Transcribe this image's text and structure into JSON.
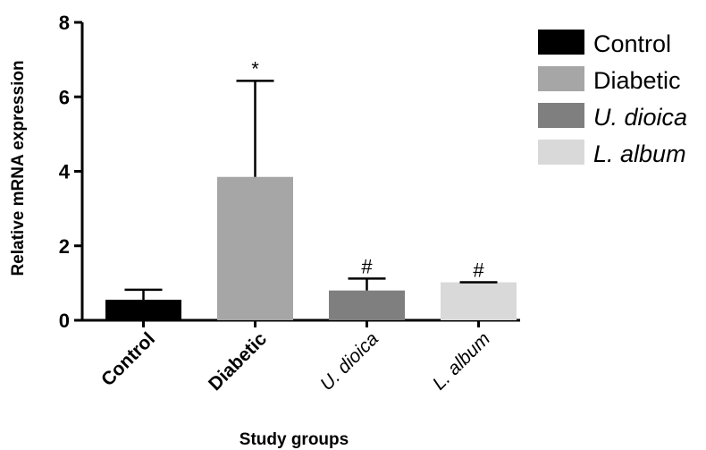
{
  "chart_data": {
    "type": "bar",
    "title": "",
    "xlabel": "Study groups",
    "ylabel": "Relative mRNA expression",
    "ylim": [
      0,
      8
    ],
    "yticks": [
      0,
      2,
      4,
      6,
      8
    ],
    "categories": [
      "Control",
      "Diabetic",
      "U. dioica",
      "L. album"
    ],
    "values": [
      0.55,
      3.85,
      0.8,
      1.02
    ],
    "error_upper": [
      0.82,
      6.43,
      1.12,
      1.02
    ],
    "annotations": [
      "",
      "*",
      "#",
      "#"
    ],
    "colors": [
      "#000000",
      "#a6a6a6",
      "#7f7f7f",
      "#d9d9d9"
    ],
    "category_styles": [
      "bold",
      "bold",
      "italic",
      "italic"
    ],
    "legend": {
      "placement": "top-right",
      "entries": [
        {
          "label": "Control",
          "color": "#000000",
          "style": "normal"
        },
        {
          "label": "Diabetic",
          "color": "#a6a6a6",
          "style": "normal"
        },
        {
          "label": "U. dioica",
          "color": "#7f7f7f",
          "style": "italic"
        },
        {
          "label": "L. album",
          "color": "#d9d9d9",
          "style": "italic"
        }
      ]
    },
    "grid": false
  }
}
